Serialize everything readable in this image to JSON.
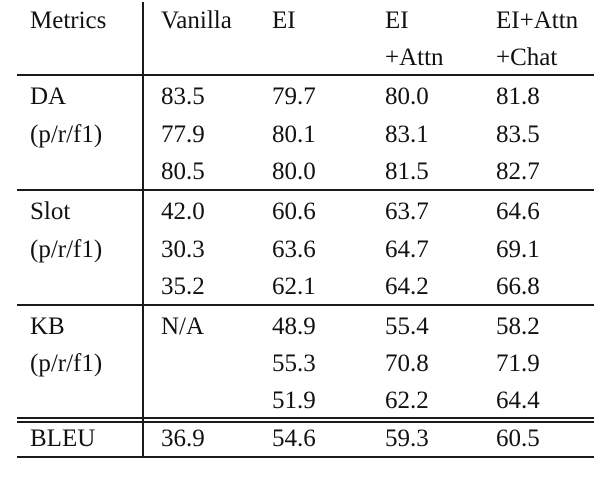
{
  "table": {
    "headers": [
      [
        "Metrics"
      ],
      [
        "Vanilla"
      ],
      [
        "EI"
      ],
      [
        "EI",
        "+Attn"
      ],
      [
        "EI+Attn",
        "+Chat"
      ]
    ],
    "groups": [
      {
        "label": [
          "DA",
          "(p/r/f1)"
        ],
        "rows": [
          [
            "83.5",
            "79.7",
            "80.0",
            "81.8"
          ],
          [
            "77.9",
            "80.1",
            "83.1",
            "83.5"
          ],
          [
            "80.5",
            "80.0",
            "81.5",
            "82.7"
          ]
        ]
      },
      {
        "label": [
          "Slot",
          "(p/r/f1)"
        ],
        "rows": [
          [
            "42.0",
            "60.6",
            "63.7",
            "64.6"
          ],
          [
            "30.3",
            "63.6",
            "64.7",
            "69.1"
          ],
          [
            "35.2",
            "62.1",
            "64.2",
            "66.8"
          ]
        ]
      },
      {
        "label": [
          "KB",
          "(p/r/f1)"
        ],
        "rows": [
          [
            "N/A",
            "48.9",
            "55.4",
            "58.2"
          ],
          [
            "",
            "55.3",
            "70.8",
            "71.9"
          ],
          [
            "",
            "51.9",
            "62.2",
            "64.4"
          ]
        ]
      },
      {
        "label": [
          "BLEU"
        ],
        "rows": [
          [
            "36.9",
            "54.6",
            "59.3",
            "60.5"
          ]
        ]
      }
    ]
  }
}
